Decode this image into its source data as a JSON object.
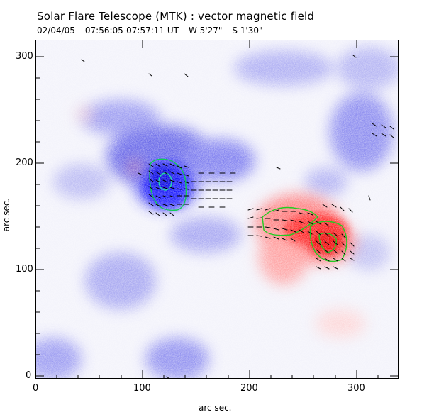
{
  "header": {
    "title": "Solar Flare Telescope (MTK) : vector magnetic field",
    "date": "02/04/05",
    "time_range": "07:56:05-07:57:11 UT",
    "lon": "W 5'27\"",
    "lat": "S 1'30\""
  },
  "axes": {
    "xlabel": "arc sec.",
    "ylabel": "arc sec.",
    "x_ticks": [
      "0",
      "100",
      "200",
      "300"
    ],
    "y_ticks": [
      "0",
      "100",
      "200",
      "300"
    ]
  },
  "colors": {
    "negative_polarity": "#1a1aff",
    "positive_polarity": "#ff1a1a",
    "contour": "#22cc22",
    "vector": "#000000",
    "frame": "#000000"
  }
}
